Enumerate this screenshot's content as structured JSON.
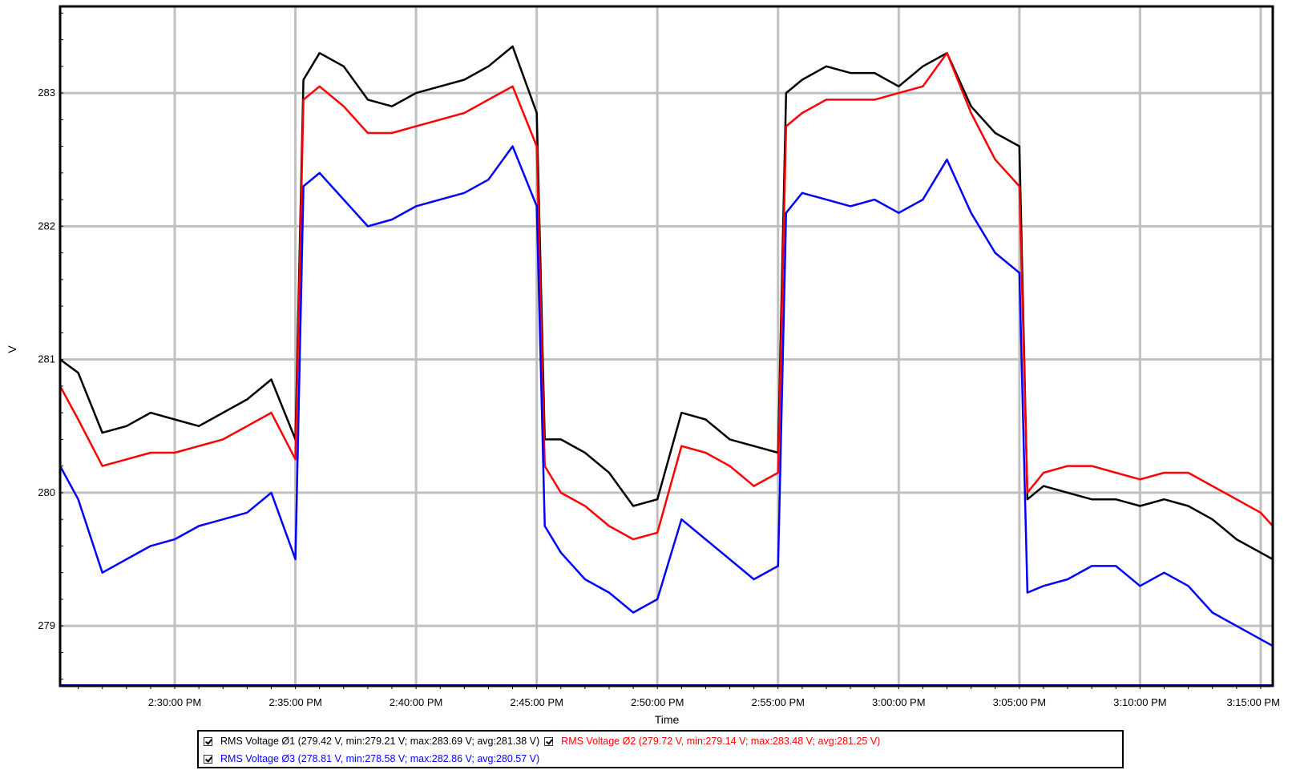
{
  "chart_data": {
    "type": "line",
    "title": "",
    "xlabel": "Time",
    "ylabel": "V",
    "x_ticks": [
      "2:30:00 PM",
      "2:35:00 PM",
      "2:40:00 PM",
      "2:45:00 PM",
      "2:50:00 PM",
      "2:55:00 PM",
      "3:00:00 PM",
      "3:05:00 PM",
      "3:10:00 PM",
      "3:15:00 PM"
    ],
    "y_ticks": [
      279,
      280,
      281,
      282,
      283
    ],
    "xlim": [
      "2:25:15 PM",
      "3:15:30 PM"
    ],
    "ylim": [
      278.55,
      283.65
    ],
    "grid": true,
    "legend_position": "bottom",
    "x": [
      "2:25:15 PM",
      "2:26:00 PM",
      "2:27:00 PM",
      "2:28:00 PM",
      "2:29:00 PM",
      "2:30:00 PM",
      "2:31:00 PM",
      "2:32:00 PM",
      "2:33:00 PM",
      "2:34:00 PM",
      "2:35:00 PM",
      "2:35:20 PM",
      "2:36:00 PM",
      "2:37:00 PM",
      "2:38:00 PM",
      "2:39:00 PM",
      "2:40:00 PM",
      "2:41:00 PM",
      "2:42:00 PM",
      "2:43:00 PM",
      "2:44:00 PM",
      "2:45:00 PM",
      "2:45:20 PM",
      "2:46:00 PM",
      "2:47:00 PM",
      "2:48:00 PM",
      "2:49:00 PM",
      "2:50:00 PM",
      "2:51:00 PM",
      "2:52:00 PM",
      "2:53:00 PM",
      "2:54:00 PM",
      "2:55:00 PM",
      "2:55:20 PM",
      "2:56:00 PM",
      "2:57:00 PM",
      "2:58:00 PM",
      "2:59:00 PM",
      "3:00:00 PM",
      "3:01:00 PM",
      "3:02:00 PM",
      "3:03:00 PM",
      "3:04:00 PM",
      "3:05:00 PM",
      "3:05:20 PM",
      "3:06:00 PM",
      "3:07:00 PM",
      "3:08:00 PM",
      "3:09:00 PM",
      "3:10:00 PM",
      "3:11:00 PM",
      "3:12:00 PM",
      "3:13:00 PM",
      "3:14:00 PM",
      "3:15:00 PM",
      "3:15:30 PM"
    ],
    "series": [
      {
        "name": "RMS Voltage Ø1 (279.42 V, min:279.21 V; max:283.69 V; avg:281.38 V)",
        "color": "#000000",
        "values": [
          281.0,
          280.9,
          280.45,
          280.5,
          280.6,
          280.55,
          280.5,
          280.6,
          280.7,
          280.85,
          280.4,
          283.1,
          283.3,
          283.2,
          282.95,
          282.9,
          283.0,
          283.05,
          283.1,
          283.2,
          283.35,
          282.85,
          280.4,
          280.4,
          280.3,
          280.15,
          279.9,
          279.95,
          280.6,
          280.55,
          280.4,
          280.35,
          280.3,
          283.0,
          283.1,
          283.2,
          283.15,
          283.15,
          283.05,
          283.2,
          283.3,
          282.9,
          282.7,
          282.6,
          279.95,
          280.05,
          280.0,
          279.95,
          279.95,
          279.9,
          279.95,
          279.9,
          279.8,
          279.65,
          279.55,
          279.5
        ]
      },
      {
        "name": "RMS Voltage Ø2 (279.72 V, min:279.14 V; max:283.48 V; avg:281.25 V)",
        "color": "#ff0000",
        "values": [
          280.8,
          280.55,
          280.2,
          280.25,
          280.3,
          280.3,
          280.35,
          280.4,
          280.5,
          280.6,
          280.25,
          282.95,
          283.05,
          282.9,
          282.7,
          282.7,
          282.75,
          282.8,
          282.85,
          282.95,
          283.05,
          282.6,
          280.2,
          280.0,
          279.9,
          279.75,
          279.65,
          279.7,
          280.35,
          280.3,
          280.2,
          280.05,
          280.15,
          282.75,
          282.85,
          282.95,
          282.95,
          282.95,
          283.0,
          283.05,
          283.3,
          282.85,
          282.5,
          282.3,
          280.0,
          280.15,
          280.2,
          280.2,
          280.15,
          280.1,
          280.15,
          280.15,
          280.05,
          279.95,
          279.85,
          279.75
        ]
      },
      {
        "name": "RMS Voltage Ø3 (278.81 V, min:278.58 V; max:282.86 V; avg:280.57 V)",
        "color": "#0000ff",
        "values": [
          280.2,
          279.95,
          279.4,
          279.5,
          279.6,
          279.65,
          279.75,
          279.8,
          279.85,
          280.0,
          279.5,
          282.3,
          282.4,
          282.2,
          282.0,
          282.05,
          282.15,
          282.2,
          282.25,
          282.35,
          282.6,
          282.15,
          279.75,
          279.55,
          279.35,
          279.25,
          279.1,
          279.2,
          279.8,
          279.65,
          279.5,
          279.35,
          279.45,
          282.1,
          282.25,
          282.2,
          282.15,
          282.2,
          282.1,
          282.2,
          282.5,
          282.1,
          281.8,
          281.65,
          279.25,
          279.3,
          279.35,
          279.45,
          279.45,
          279.3,
          279.4,
          279.3,
          279.1,
          279.0,
          278.9,
          278.85
        ]
      }
    ]
  },
  "legend": {
    "row1": [
      {
        "text": "RMS Voltage Ø1 (279.42 V, min:279.21 V; max:283.69 V; avg:281.38 V)",
        "color": "#000000"
      },
      {
        "text": "RMS Voltage Ø2 (279.72 V, min:279.14 V; max:283.48 V; avg:281.25 V)",
        "color": "#ff0000"
      }
    ],
    "row2": [
      {
        "text": "RMS Voltage Ø3 (278.81 V, min:278.58 V; max:282.86 V; avg:280.57 V)",
        "color": "#0000ff"
      }
    ]
  }
}
